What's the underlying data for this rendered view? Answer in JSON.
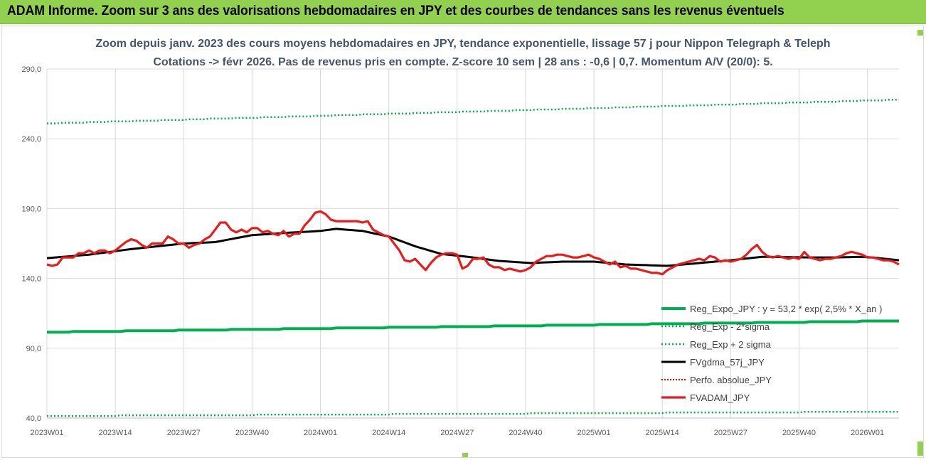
{
  "banner": {
    "title": "ADAM Informe. Zoom sur 3 ans des valorisations hebdomadaires en JPY et des courbes de tendances sans les revenus éventuels"
  },
  "colors": {
    "banner_bg": "#92d050",
    "trend": "#00b050",
    "fvgdma": "#000000",
    "fvadam": "#e81c1c",
    "perfo": "#ff0000",
    "grid": "#d9d9d9"
  },
  "chart_data": {
    "type": "line",
    "title": "Zoom depuis janv. 2023 des cours moyens hebdomadaires en JPY, tendance exponentielle, lissage 57 j pour Nippon Telegraph & Teleph",
    "subtitle": "Cotations -> févr 2026. Pas de revenus pris en compte. Z-score 10 sem | 28 ans : -0,6 | 0,7. Momentum A/V (20/0): 5.",
    "ylim": [
      40,
      290
    ],
    "ytick_values": [
      40,
      90,
      140,
      190,
      240,
      290
    ],
    "ytick_labels": [
      "40,0",
      "90,0",
      "140,0",
      "190,0",
      "240,0",
      "290,0"
    ],
    "x_count": 163,
    "xtick_labels": [
      "2023W01",
      "2023W14",
      "2023W27",
      "2023W40",
      "2024W01",
      "2024W14",
      "2024W27",
      "2024W40",
      "2025W01",
      "2025W14",
      "2025W27",
      "2025W40",
      "2026W01"
    ],
    "xtick_index": [
      0,
      13,
      26,
      39,
      52,
      65,
      78,
      91,
      104,
      117,
      130,
      143,
      156
    ],
    "legend": {
      "position": "right-center",
      "entries": [
        "Reg_Expo_JPY : y = 53,2 * exp( 2,5% *  X_an )",
        "Reg_Exp - 2*sigma",
        "Reg_Exp + 2 sigma",
        "FVgdma_57j_JPY",
        "Perfo. absolue_JPY",
        "FVADAM_JPY"
      ]
    },
    "series": [
      {
        "name": "Reg_Expo_JPY",
        "style": "solid-thick-green",
        "start": 101.5,
        "end": 109.6
      },
      {
        "name": "Reg_Exp - 2*sigma",
        "style": "dotted-green",
        "start": 41.5,
        "end": 44.6
      },
      {
        "name": "Reg_Exp + 2 sigma",
        "style": "dotted-green",
        "start": 251.0,
        "end": 268.0
      },
      {
        "name": "FVgdma_57j_JPY",
        "style": "solid-black",
        "knots": [
          [
            0,
            154.5
          ],
          [
            8,
            157
          ],
          [
            16,
            161
          ],
          [
            26,
            165
          ],
          [
            32,
            166
          ],
          [
            39,
            171
          ],
          [
            45,
            172.5
          ],
          [
            52,
            174
          ],
          [
            55,
            175.5
          ],
          [
            60,
            174
          ],
          [
            65,
            170
          ],
          [
            70,
            163
          ],
          [
            75,
            157.5
          ],
          [
            80,
            155.5
          ],
          [
            86,
            152.5
          ],
          [
            92,
            151
          ],
          [
            98,
            152
          ],
          [
            104,
            152
          ],
          [
            110,
            150
          ],
          [
            118,
            149
          ],
          [
            124,
            151
          ],
          [
            130,
            153
          ],
          [
            136,
            155.5
          ],
          [
            145,
            155
          ],
          [
            150,
            155
          ],
          [
            155,
            155.5
          ],
          [
            157,
            155
          ],
          [
            162,
            153
          ]
        ]
      },
      {
        "name": "FVADAM_JPY",
        "style": "solid-thick-red",
        "values": [
          150,
          149,
          150,
          155,
          155,
          155,
          158,
          158,
          160,
          158,
          160,
          160,
          158,
          160,
          163,
          166,
          168,
          167,
          164,
          162,
          165,
          165,
          165,
          170,
          168,
          165,
          165,
          162,
          164,
          165,
          168,
          170,
          175,
          180,
          180,
          175,
          173,
          175,
          173,
          176,
          176,
          173,
          174,
          172,
          171,
          174,
          170,
          172,
          172,
          178,
          182,
          187,
          188,
          186,
          182,
          181,
          181,
          181,
          181,
          181,
          180,
          181,
          175,
          173,
          171,
          170,
          165,
          160,
          153,
          152,
          154,
          150,
          146,
          151,
          155,
          157,
          158,
          158,
          157,
          147,
          149,
          154,
          154,
          155,
          150,
          148,
          148,
          146,
          147,
          146,
          145,
          146,
          148,
          152,
          154,
          156,
          156,
          157,
          157,
          156,
          155,
          155,
          156,
          157,
          155,
          154,
          152,
          150,
          152,
          148,
          149,
          147,
          147,
          146,
          145,
          144,
          144,
          143,
          146,
          148,
          150,
          151,
          152,
          153,
          154,
          153,
          156,
          155,
          152,
          153,
          152,
          153,
          154,
          157,
          161,
          164,
          159,
          156,
          155,
          156,
          155,
          154,
          155,
          154,
          159,
          155,
          154,
          153,
          154,
          154,
          155,
          156,
          158,
          159,
          158,
          157,
          155,
          155,
          154,
          153,
          153,
          152,
          150
        ]
      }
    ]
  }
}
